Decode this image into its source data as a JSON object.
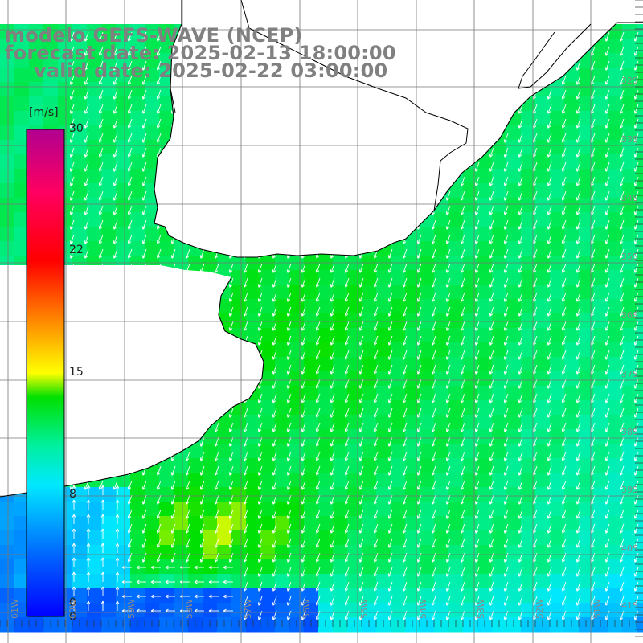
{
  "title": {
    "line1": "modelo GEFS-WAVE (NCEP)",
    "line2": "forecast date: 2025-02-13 18:00:00",
    "line3": "valid date: 2025-02-22 03:00:00"
  },
  "colorbar": {
    "unit": "[m/s]",
    "min": 0,
    "max": 30,
    "ticks": [
      "30",
      "22",
      "15",
      "8",
      "0",
      "0"
    ]
  },
  "lat_labels": [
    "32S",
    "33S",
    "34S",
    "35S",
    "36S",
    "37S",
    "38S",
    "39S",
    "40S",
    "41S"
  ],
  "lon_labels": [
    "61W",
    "60W",
    "59W",
    "58W",
    "57W",
    "56W",
    "55W",
    "54W",
    "53W",
    "52W",
    "51W"
  ],
  "colors": {
    "land": "#ffffff",
    "grid": "#777777",
    "coast": "#000000",
    "arrows": "#ffffff",
    "title": "#808080"
  }
}
